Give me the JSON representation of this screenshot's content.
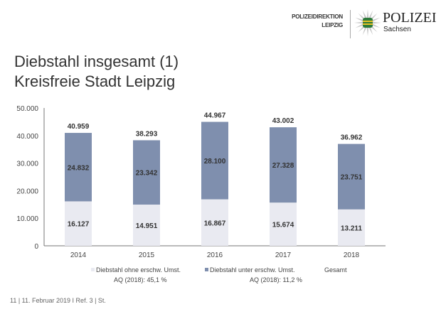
{
  "header": {
    "org_line1": "POLIZEIDIREKTION",
    "org_line2": "LEIPZIG",
    "logo_text": "POLIZEI",
    "logo_sub": "Sachsen"
  },
  "title_line1": "Diebstahl insgesamt (1)",
  "title_line2": "Kreisfreie Stadt Leipzig",
  "chart_data": {
    "type": "bar",
    "stacked": true,
    "categories": [
      "2014",
      "2015",
      "2016",
      "2017",
      "2018"
    ],
    "series": [
      {
        "name": "Diebstahl ohne erschw. Umst.",
        "values": [
          16127,
          14951,
          16867,
          15674,
          13211
        ],
        "labels": [
          "16.127",
          "14.951",
          "16.867",
          "15.674",
          "13.211"
        ],
        "color": "#e9eaf1"
      },
      {
        "name": "Diebstahl unter erschw. Umst.",
        "values": [
          24832,
          23342,
          28100,
          27328,
          23751
        ],
        "labels": [
          "24.832",
          "23.342",
          "28.100",
          "27.328",
          "23.751"
        ],
        "color": "#7f8fae"
      }
    ],
    "totals": {
      "name": "Gesamt",
      "values": [
        40959,
        38293,
        44967,
        43002,
        36962
      ],
      "labels": [
        "40.959",
        "38.293",
        "44.967",
        "43.002",
        "36.962"
      ]
    },
    "ylim": [
      0,
      50000
    ],
    "yticks": [
      0,
      10000,
      20000,
      30000,
      40000,
      50000
    ],
    "ytick_labels": [
      "0",
      "10.000",
      "20.000",
      "30.000",
      "40.000",
      "50.000"
    ],
    "legend": "bottom",
    "grid": false
  },
  "notes": {
    "aq1": "AQ (2018): 45,1 %",
    "aq2": "AQ (2018): 11,2 %"
  },
  "footer": "11  |  11. Februar 2019  I Ref. 3 | St."
}
